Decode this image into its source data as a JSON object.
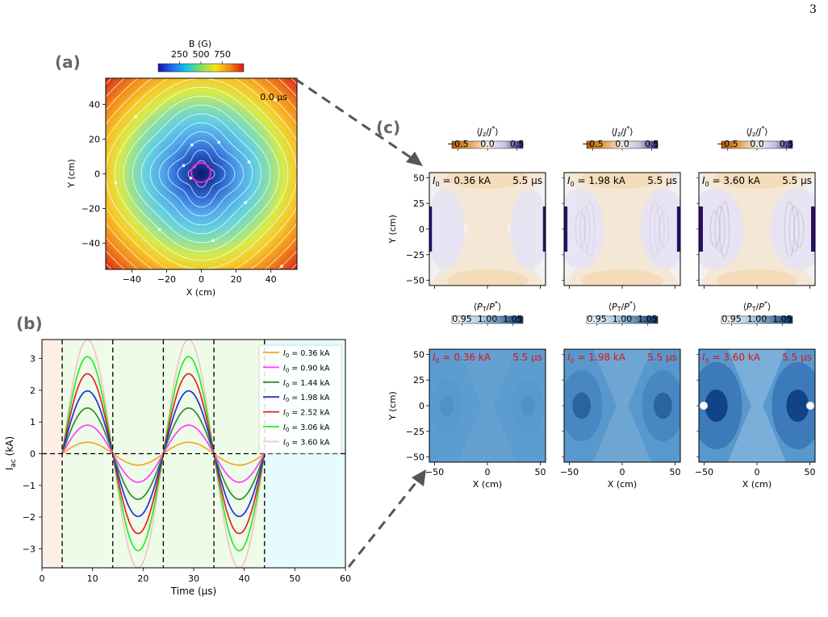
{
  "page_number": "3",
  "panel_labels": {
    "a": "(a)",
    "b": "(b)",
    "c": "(c)"
  },
  "colors": {
    "current_colors": [
      "#f5a623",
      "#ff3cff",
      "#2e8b2e",
      "#1f2fe0",
      "#e82020",
      "#22ee22",
      "#f2c4c4"
    ],
    "phase_backgrounds": [
      "#fdeee6",
      "#eefbe9",
      "#e6fcfc"
    ],
    "panel_a_circle": "#e020e0",
    "jz_colormap": [
      "#b05a00",
      "#e6a050",
      "#f6f1ea",
      "#c8c0e0",
      "#2a0f6a"
    ],
    "pt_colormap": [
      "#ffffff",
      "#9cc3e0",
      "#08306b"
    ],
    "overlay_black": "#000000",
    "overlay_red": "#e11111"
  },
  "chart_data": [
    {
      "id": "a",
      "type": "heatmap",
      "title": "",
      "xlabel": "X (cm)",
      "ylabel": "Y (cm)",
      "xlim": [
        -55,
        55
      ],
      "ylim": [
        -55,
        55
      ],
      "xticks": [
        "−40",
        "−20",
        "0",
        "20",
        "40"
      ],
      "yticks": [
        "40",
        "20",
        "0",
        "−20",
        "−40"
      ],
      "colorbar": {
        "title": "B (G)",
        "ticks": [
          "250",
          "500",
          "750"
        ],
        "range": [
          0,
          1000
        ]
      },
      "time_label": "0.0 μs",
      "field": "magnetic field magnitude, minimum at origin, with streamlines"
    },
    {
      "id": "b",
      "type": "line",
      "xlabel": "Time (μs)",
      "ylabel": "I",
      "ylabel_sub": "ac",
      "ylabel_unit": " (kA)",
      "xlim": [
        0,
        60
      ],
      "ylim": [
        -3.6,
        3.6
      ],
      "xticks": [
        "0",
        "10",
        "20",
        "30",
        "40",
        "50",
        "60"
      ],
      "yticks": [
        "3",
        "2",
        "1",
        "0",
        "−1",
        "−2",
        "−3"
      ],
      "waveform": "I(t) = I0 · sin(2π (t − 4) / 20) for 4 ≤ t ≤ 44 μs, else 0",
      "t_start": 4,
      "t_end": 44,
      "period": 20,
      "vlines": [
        4,
        14,
        24,
        34,
        44
      ],
      "phases": [
        [
          0,
          4
        ],
        [
          4,
          44
        ],
        [
          44,
          60
        ]
      ],
      "legend_prefix": "I",
      "legend_sub": "0",
      "series": [
        {
          "name": "= 0.36 kA",
          "amplitude": 0.36
        },
        {
          "name": "= 0.90 kA",
          "amplitude": 0.9
        },
        {
          "name": "= 1.44 kA",
          "amplitude": 1.44
        },
        {
          "name": "= 1.98 kA",
          "amplitude": 1.98
        },
        {
          "name": "= 2.52 kA",
          "amplitude": 2.52
        },
        {
          "name": "= 3.06 kA",
          "amplitude": 3.06
        },
        {
          "name": "= 3.60 kA",
          "amplitude": 3.6
        }
      ]
    },
    {
      "id": "c",
      "type": "heatmap",
      "grid": "2 rows × 3 columns",
      "xlabel": "X (cm)",
      "ylabel": "Y (cm)",
      "xticks": [
        "−50",
        "0",
        "50"
      ],
      "yticks": [
        "50",
        "25",
        "0",
        "−25",
        "−50"
      ],
      "rows": [
        {
          "quantity": "Jz/J*",
          "colorbar_title": "⟨J_z/J^*⟩",
          "colorbar_ticks": [
            "−0.5",
            "0.0",
            "0.5"
          ],
          "range": [
            -0.6,
            0.6
          ],
          "label_color": "black"
        },
        {
          "quantity": "PT/P*",
          "colorbar_title": "⟨P_T/P^*⟩",
          "colorbar_ticks": [
            "0.95",
            "1.00",
            "1.05"
          ],
          "range": [
            0.93,
            1.07
          ],
          "label_color": "red"
        }
      ],
      "panels": [
        {
          "current": "= 0.36 kA",
          "time": "5.5 μs",
          "intensity": 0.1
        },
        {
          "current": "= 1.98 kA",
          "time": "5.5 μs",
          "intensity": 0.55
        },
        {
          "current": "= 3.60 kA",
          "time": "5.5 μs",
          "intensity": 1.0
        }
      ]
    }
  ]
}
